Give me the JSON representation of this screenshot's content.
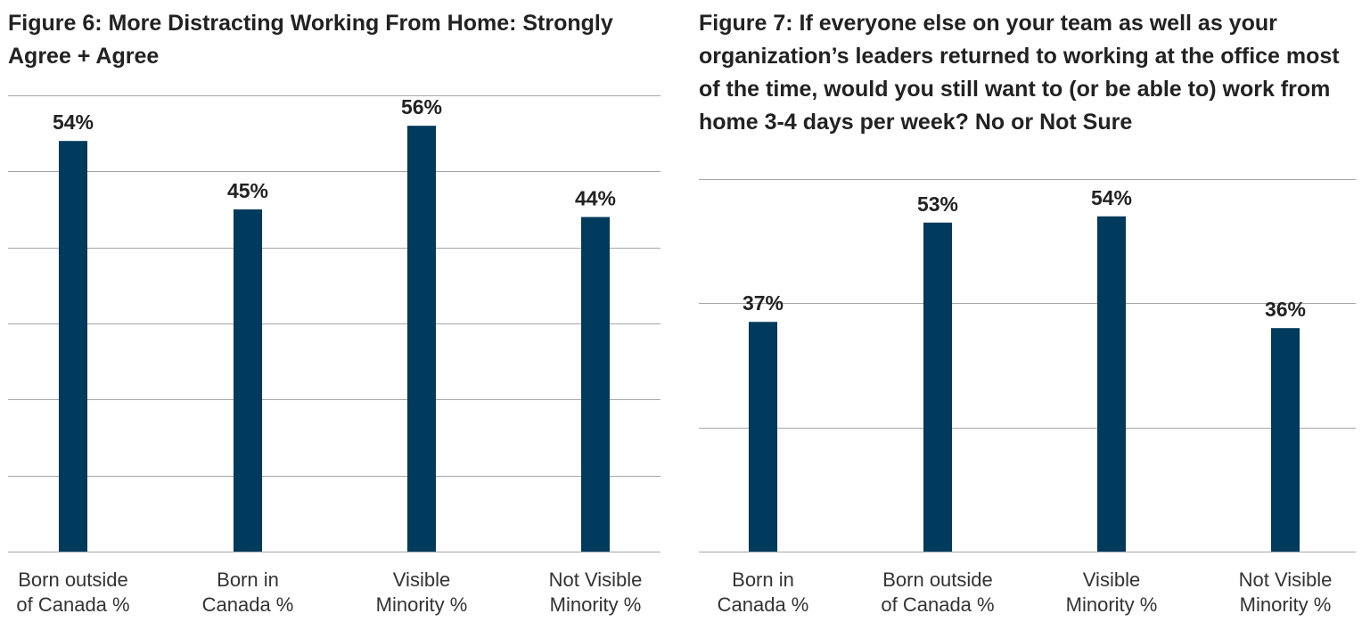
{
  "colors": {
    "bar": "#003a5c",
    "gridline": "#a6a6a6",
    "value_label": "#222222"
  },
  "chart_data": [
    {
      "type": "bar",
      "title": "Figure 6: More Distracting Working From Home: Strongly Agree + Agree",
      "categories": [
        "Born outside of Canada %",
        "Born in Canada %",
        "Visible Minority %",
        "Not Visible Minority %"
      ],
      "category_lines": [
        [
          "Born outside",
          "of Canada %"
        ],
        [
          "Born in",
          "Canada %"
        ],
        [
          "Visible",
          "Minority %"
        ],
        [
          "Not Visible",
          "Minority %"
        ]
      ],
      "values": [
        54,
        45,
        56,
        44
      ],
      "value_labels": [
        "54%",
        "45%",
        "56%",
        "44%"
      ],
      "ylim": [
        0,
        60
      ],
      "gridline_values": [
        0,
        10,
        20,
        30,
        40,
        50,
        60
      ],
      "grid": true,
      "legend": "none"
    },
    {
      "type": "bar",
      "title": "Figure 7: If everyone else on your team as well as your organization’s leaders returned to working at the office most of the time, would you still want to (or be able to) work from home 3-4 days per week? No or Not Sure",
      "categories": [
        "Born in Canada %",
        "Born outside of Canada %",
        "Visible Minority %",
        "Not Visible Minority %"
      ],
      "category_lines": [
        [
          "Born in",
          "Canada %"
        ],
        [
          "Born outside",
          "of Canada %"
        ],
        [
          "Visible",
          "Minority %"
        ],
        [
          "Not Visible",
          "Minority %"
        ]
      ],
      "values": [
        37,
        53,
        54,
        36
      ],
      "value_labels": [
        "37%",
        "53%",
        "54%",
        "36%"
      ],
      "ylim": [
        0,
        60
      ],
      "gridline_values": [
        0,
        20,
        40,
        60
      ],
      "grid": true,
      "legend": "none"
    }
  ]
}
